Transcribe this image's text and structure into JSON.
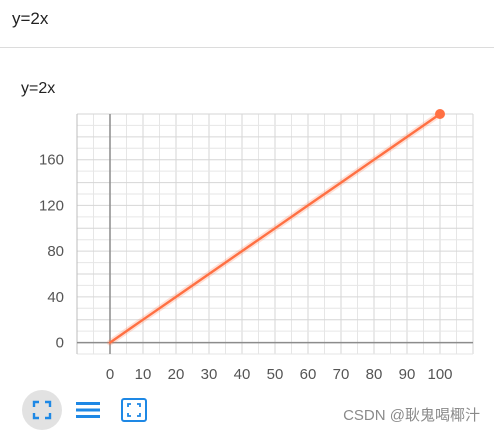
{
  "header": {
    "title": "y=2x"
  },
  "toolbar": {
    "buttons": [
      {
        "name": "fullscreen-icon",
        "active": true
      },
      {
        "name": "list-icon",
        "active": false
      },
      {
        "name": "fit-view-icon",
        "active": false
      }
    ],
    "accent": "#1e88e5"
  },
  "watermark": "CSDN @耿鬼喝椰汁",
  "chart_data": {
    "type": "line",
    "title": "y=2x",
    "xlabel": "",
    "ylabel": "",
    "xlim": [
      -10,
      110
    ],
    "ylim": [
      -10,
      200
    ],
    "x_ticks": [
      0,
      10,
      20,
      30,
      40,
      50,
      60,
      70,
      80,
      90,
      100
    ],
    "y_ticks": [
      0,
      40,
      80,
      120,
      160
    ],
    "grid": true,
    "legend": "none",
    "series": [
      {
        "color": "#ff7043",
        "x": [
          0,
          5,
          10,
          20,
          30,
          40,
          50,
          60,
          70,
          80,
          90,
          100
        ],
        "y": [
          0,
          10,
          20,
          40,
          60,
          80,
          100,
          120,
          140,
          160,
          180,
          200
        ],
        "end_marker": true
      }
    ]
  }
}
